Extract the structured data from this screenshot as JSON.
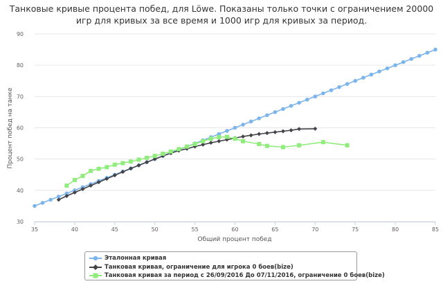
{
  "chart_data": {
    "type": "line",
    "title_lines": [
      "Танковые кривые процента побед, для Löwe. Показаны только точки с ограничением 20000",
      "игр для кривых за все время и 1000 игр для кривых за период."
    ],
    "xlabel": "Общий процент побед",
    "ylabel": "Процент побед на танке",
    "xlim": [
      35,
      85
    ],
    "ylim": [
      30,
      90
    ],
    "x_ticks": [
      35,
      40,
      45,
      50,
      55,
      60,
      65,
      70,
      75,
      80,
      85
    ],
    "y_ticks": [
      30,
      40,
      50,
      60,
      70,
      80,
      90
    ],
    "grid": "horizontal",
    "legend_position": "bottom-left",
    "series": [
      {
        "name": "Эталонная кривая",
        "color": "#7cb5ec",
        "marker": "circle",
        "x": [
          35,
          36,
          37,
          38,
          39,
          40,
          41,
          42,
          43,
          44,
          45,
          46,
          47,
          48,
          49,
          50,
          51,
          52,
          53,
          54,
          55,
          56,
          57,
          58,
          59,
          60,
          61,
          62,
          63,
          64,
          65,
          66,
          67,
          68,
          69,
          70,
          71,
          72,
          73,
          74,
          75,
          76,
          77,
          78,
          79,
          80,
          81,
          82,
          83,
          84,
          85
        ],
        "y": [
          35,
          36,
          37,
          38,
          39,
          40,
          41,
          42,
          43,
          44,
          45,
          46,
          47,
          48,
          49,
          50,
          51,
          52,
          53,
          54,
          55,
          56,
          57,
          58,
          59,
          60,
          61,
          62,
          63,
          64,
          65,
          66,
          67,
          68,
          69,
          70,
          71,
          72,
          73,
          74,
          75,
          76,
          77,
          78,
          79,
          80,
          81,
          82,
          83,
          84,
          85
        ]
      },
      {
        "name": "Танковая кривая, ограничение для игрока 0 боев(bize)",
        "color": "#434348",
        "marker": "diamond",
        "x": [
          38,
          39,
          40,
          41,
          42,
          43,
          44,
          45,
          46,
          47,
          48,
          49,
          50,
          51,
          52,
          53,
          54,
          55,
          56,
          57,
          58,
          59,
          60,
          61,
          62,
          63,
          64,
          65,
          66,
          67,
          68,
          70
        ],
        "y": [
          37,
          38.2,
          39.3,
          40.4,
          41.5,
          42.6,
          43.7,
          44.8,
          45.9,
          47,
          48,
          49,
          50,
          51,
          51.9,
          52.7,
          53.3,
          54,
          54.6,
          55.2,
          55.7,
          56.2,
          56.7,
          57.2,
          57.6,
          58,
          58.3,
          58.6,
          58.9,
          59.2,
          59.6,
          59.7
        ]
      },
      {
        "name": "Танковая кривая за период с 26/09/2016 До 07/11/2016, ограничение 0 боев(bize)",
        "color": "#90ed7d",
        "marker": "square",
        "x": [
          39,
          40,
          41,
          42,
          43,
          44,
          45,
          46,
          47,
          48,
          49,
          50,
          51,
          52,
          53,
          54,
          55,
          56,
          57,
          58,
          59,
          60,
          61,
          63,
          64,
          66,
          68,
          71,
          74
        ],
        "y": [
          41.5,
          43.3,
          44.6,
          46.2,
          46.9,
          47.4,
          48.2,
          48.7,
          49.2,
          49.8,
          50.4,
          51,
          51.7,
          52.4,
          53.2,
          54,
          54.8,
          55.7,
          56.5,
          57,
          57.1,
          56.5,
          55.7,
          54.8,
          54.2,
          53.8,
          54.4,
          55.4,
          54.4
        ]
      }
    ]
  }
}
